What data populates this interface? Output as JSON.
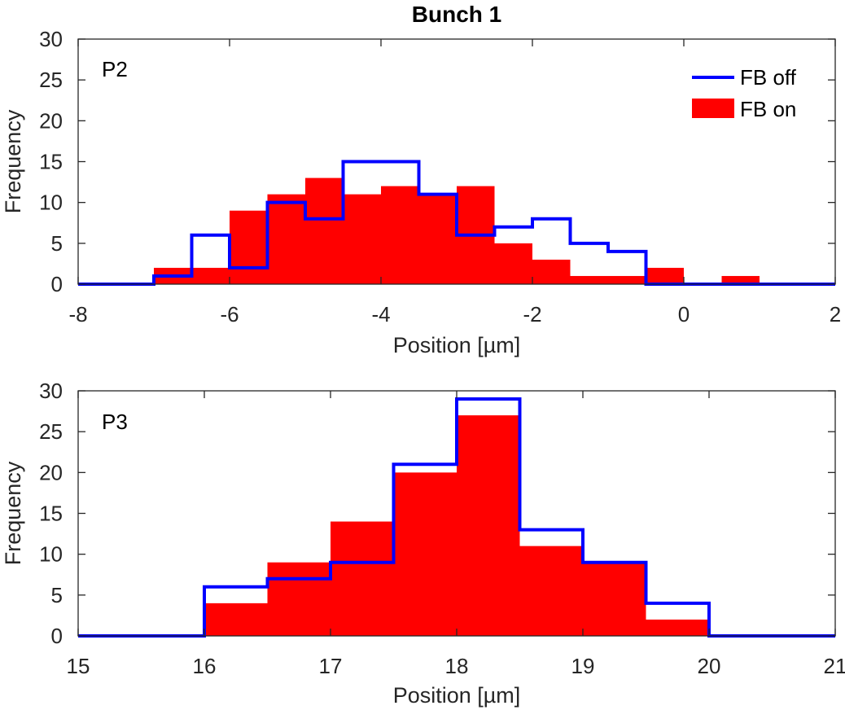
{
  "figure": {
    "title": "Bunch 1"
  },
  "colors": {
    "fb_off": "#0000ff",
    "fb_on": "#ff0000",
    "axis": "#262626"
  },
  "legend": {
    "off_label": "FB off",
    "on_label": "FB on"
  },
  "chart_data": [
    {
      "type": "histogram",
      "panel_label": "P2",
      "xlabel": "Position [µm]",
      "ylabel": "Frequency",
      "xlim": [
        -8,
        2
      ],
      "ylim": [
        0,
        30
      ],
      "xticks": [
        -8,
        -6,
        -4,
        -2,
        0,
        2
      ],
      "yticks": [
        0,
        5,
        10,
        15,
        20,
        25,
        30
      ],
      "fb_on": {
        "name": "FB on",
        "bars": [
          {
            "x0": -7.0,
            "x1": -6.5,
            "count": 2
          },
          {
            "x0": -6.5,
            "x1": -6.0,
            "count": 2
          },
          {
            "x0": -6.0,
            "x1": -5.5,
            "count": 9
          },
          {
            "x0": -5.5,
            "x1": -5.0,
            "count": 11
          },
          {
            "x0": -5.0,
            "x1": -4.5,
            "count": 13
          },
          {
            "x0": -4.5,
            "x1": -4.0,
            "count": 11
          },
          {
            "x0": -4.0,
            "x1": -3.5,
            "count": 12
          },
          {
            "x0": -3.5,
            "x1": -3.0,
            "count": 11
          },
          {
            "x0": -3.0,
            "x1": -2.5,
            "count": 12
          },
          {
            "x0": -2.5,
            "x1": -2.0,
            "count": 5
          },
          {
            "x0": -2.0,
            "x1": -1.5,
            "count": 3
          },
          {
            "x0": -1.5,
            "x1": -1.0,
            "count": 1
          },
          {
            "x0": -1.0,
            "x1": -0.5,
            "count": 1
          },
          {
            "x0": -0.5,
            "x1": 0.0,
            "count": 2
          },
          {
            "x0": 0.5,
            "x1": 1.0,
            "count": 1
          }
        ]
      },
      "fb_off": {
        "name": "FB off",
        "edges": [
          -8.0,
          -7.5,
          -7.0,
          -6.5,
          -6.0,
          -5.5,
          -5.0,
          -4.5,
          -4.0,
          -3.5,
          -3.0,
          -2.5,
          -2.0,
          -1.5,
          -1.0,
          -0.5,
          0.0,
          0.5,
          1.0,
          1.5,
          2.0
        ],
        "counts": [
          0,
          0,
          1,
          6,
          2,
          10,
          8,
          15,
          15,
          11,
          6,
          7,
          8,
          5,
          4,
          0,
          0,
          0,
          0,
          0
        ]
      }
    },
    {
      "type": "histogram",
      "panel_label": "P3",
      "xlabel": "Position [µm]",
      "ylabel": "Frequency",
      "xlim": [
        15,
        21
      ],
      "ylim": [
        0,
        30
      ],
      "xticks": [
        15,
        16,
        17,
        18,
        19,
        20,
        21
      ],
      "yticks": [
        0,
        5,
        10,
        15,
        20,
        25,
        30
      ],
      "fb_on": {
        "name": "FB on",
        "bars": [
          {
            "x0": 16.0,
            "x1": 16.5,
            "count": 4
          },
          {
            "x0": 16.5,
            "x1": 17.0,
            "count": 9
          },
          {
            "x0": 17.0,
            "x1": 17.5,
            "count": 14
          },
          {
            "x0": 17.5,
            "x1": 18.0,
            "count": 20
          },
          {
            "x0": 18.0,
            "x1": 18.5,
            "count": 27
          },
          {
            "x0": 18.5,
            "x1": 19.0,
            "count": 11
          },
          {
            "x0": 19.0,
            "x1": 19.5,
            "count": 9
          },
          {
            "x0": 19.5,
            "x1": 20.0,
            "count": 2
          }
        ]
      },
      "fb_off": {
        "name": "FB off",
        "edges": [
          15.0,
          15.5,
          16.0,
          16.5,
          17.0,
          17.5,
          18.0,
          18.5,
          19.0,
          19.5,
          20.0,
          20.5,
          21.0
        ],
        "counts": [
          0,
          0,
          6,
          7,
          9,
          21,
          29,
          13,
          9,
          4,
          0,
          0
        ]
      }
    }
  ]
}
